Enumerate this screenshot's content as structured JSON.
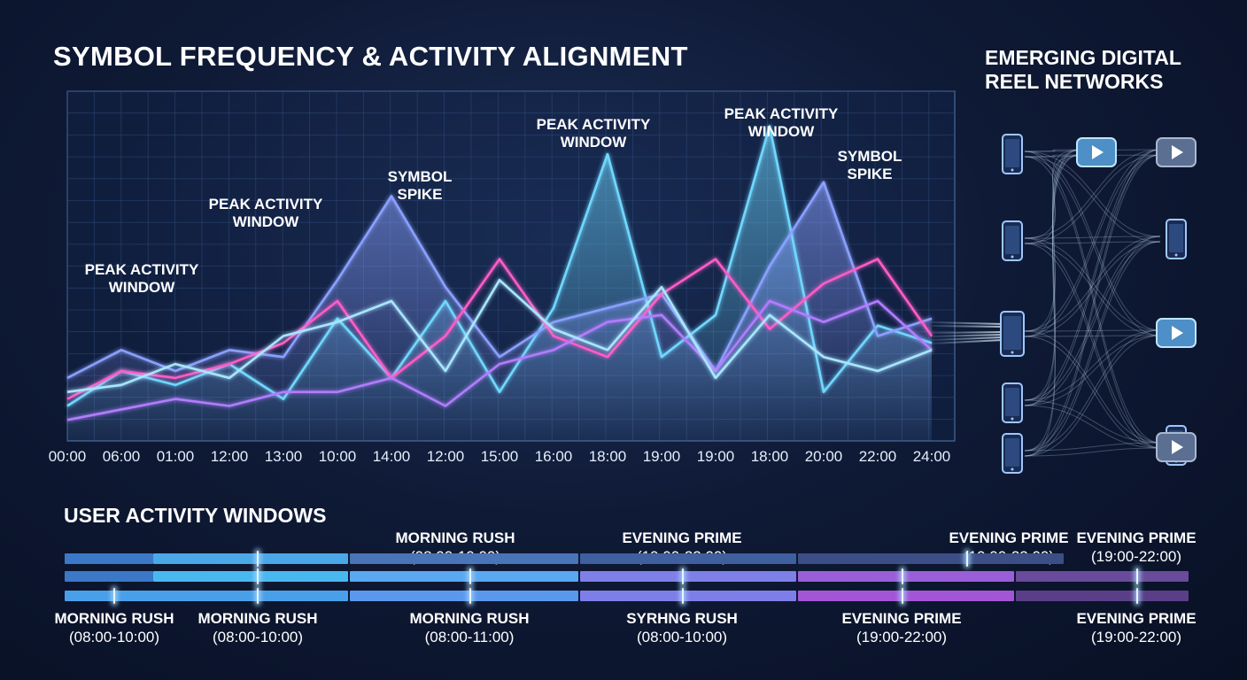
{
  "title": "SYMBOL FREQUENCY & ACTIVITY ALIGNMENT",
  "network": {
    "title_line1": "EMERGING DIGITAL",
    "title_line2": "REEL NETWORKS",
    "nodes_left": [
      "phone-icon",
      "phone-icon",
      "phone-icon",
      "phone-icon",
      "phone-icon"
    ],
    "nodes_right": [
      "play-icon",
      "play-icon",
      "phone-icon",
      "play-icon",
      "phone-icon"
    ]
  },
  "chart_data": {
    "type": "line",
    "title": "SYMBOL FREQUENCY & ACTIVITY ALIGNMENT",
    "xlabel": "",
    "ylabel": "",
    "ylim": [
      0,
      100
    ],
    "grid": true,
    "categories": [
      "00:00",
      "06:00",
      "01:00",
      "12:00",
      "13:00",
      "10:00",
      "14:00",
      "12:00",
      "15:00",
      "16:00",
      "18:00",
      "19:00",
      "19:00",
      "18:00",
      "20:00",
      "22:00",
      "24:00"
    ],
    "series": [
      {
        "color": "#6fd8ff",
        "values": [
          10,
          20,
          16,
          22,
          12,
          35,
          18,
          40,
          14,
          38,
          82,
          24,
          36,
          90,
          14,
          33,
          28
        ]
      },
      {
        "color": "#8aa0ff",
        "values": [
          18,
          26,
          20,
          26,
          24,
          46,
          70,
          44,
          24,
          34,
          38,
          42,
          20,
          50,
          74,
          30,
          35
        ]
      },
      {
        "color": "#ff5cc8",
        "values": [
          12,
          20,
          18,
          22,
          28,
          40,
          18,
          30,
          52,
          30,
          24,
          42,
          52,
          32,
          45,
          52,
          30
        ]
      },
      {
        "color": "#b27cff",
        "values": [
          6,
          9,
          12,
          10,
          14,
          14,
          18,
          10,
          22,
          26,
          34,
          36,
          20,
          40,
          34,
          40,
          26
        ]
      },
      {
        "color": "#a8e6ff",
        "values": [
          14,
          16,
          22,
          18,
          30,
          34,
          40,
          20,
          46,
          32,
          26,
          44,
          18,
          36,
          24,
          20,
          26
        ]
      }
    ],
    "annotations": [
      {
        "text_line1": "PEAK ACTIVITY",
        "text_line2": "WINDOW"
      },
      {
        "text_line1": "PEAK ACTIVITY",
        "text_line2": "WINDOW"
      },
      {
        "text_line1": "SYMBOL",
        "text_line2": "SPIKE"
      },
      {
        "text_line1": "PEAK ACTIVITY",
        "text_line2": "WINDOW"
      },
      {
        "text_line1": "PEAK ACTIVITY",
        "text_line2": "WINDOW"
      },
      {
        "text_line1": "SYMBOL",
        "text_line2": "SPIKE"
      }
    ]
  },
  "activity": {
    "title": "USER ACTIVITY WINDOWS",
    "labels_top": [
      {
        "name": "MORNING RUSH",
        "time": "(08:00-10:00)"
      },
      {
        "name": "EVENING PRIME",
        "time": "(19:00-22:00)"
      },
      {
        "name": "EVENING PRIME",
        "time": "(19:00-22:00)"
      },
      {
        "name": "EVENING PRIME",
        "time": "(19:00-22:00)"
      }
    ],
    "labels_bottom": [
      {
        "name": "MORNING RUSH",
        "time": "(08:00-10:00)"
      },
      {
        "name": "MORNING RUSH",
        "time": "(08:00-10:00)"
      },
      {
        "name": "MORNING RUSH",
        "time": "(08:00-11:00)"
      },
      {
        "name": "SYRHNG RUSH",
        "time": "(08:00-10:00)"
      },
      {
        "name": "EVENING PRIME",
        "time": "(19:00-22:00)"
      },
      {
        "name": "EVENING PRIME",
        "time": "(19:00-22:00)"
      }
    ]
  }
}
